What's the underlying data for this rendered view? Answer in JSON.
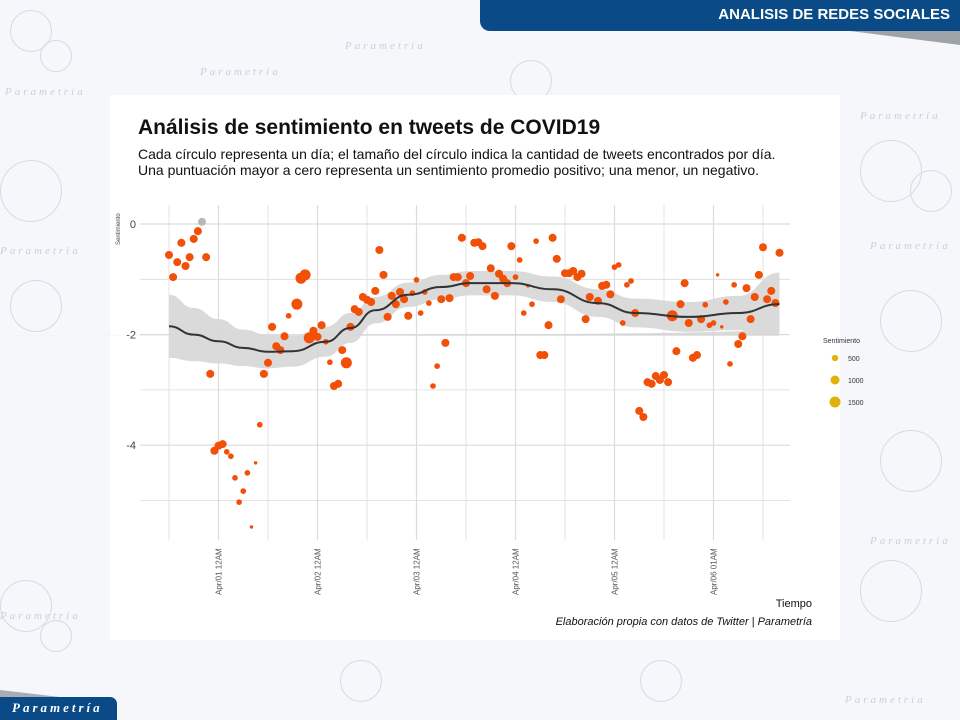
{
  "header": {
    "section_title": "ANALISIS DE REDES SOCIALES"
  },
  "footer": {
    "brand": "Parametría"
  },
  "watermark": {
    "text": "Parametría"
  },
  "chart_data": {
    "type": "scatter",
    "title": "Análisis de sentimiento en tweets de COVID19",
    "subtitle": "Cada círculo representa un día; el tamaño del círculo indica la cantidad de tweets encontrados por día. Una puntuación mayor a cero representa un sentimiento promedio positivo; una menor, un negativo.",
    "xlabel": "Tiempo",
    "ylabel": "Sentimiento",
    "caption": "Elaboración propia con datos de Twitter | Parametría",
    "ylim": [
      -5.5,
      0.3
    ],
    "y_ticks": [
      0,
      -2,
      -4
    ],
    "x_ticks": [
      {
        "x": "04-01T00",
        "label": "Apr/01 12AM"
      },
      {
        "x": "04-02T00",
        "label": "Apr/02 12AM"
      },
      {
        "x": "04-03T00",
        "label": "Apr/03 12AM"
      },
      {
        "x": "04-04T00",
        "label": "Apr/04 12AM"
      },
      {
        "x": "04-05T00",
        "label": "Apr/05 12AM"
      },
      {
        "x": "04-06T00",
        "label": "Apr/06 01AM"
      }
    ],
    "grid": true,
    "colors": {
      "negative": "#f24f07",
      "positive": "#b8b8b8",
      "smooth": "#333333",
      "band": "#d6d6d6",
      "legend": "#e0b30c"
    },
    "legend": {
      "title": "Sentimiento",
      "placement": "right",
      "sizes": [
        500,
        1000,
        1500
      ]
    },
    "points_columns": [
      "time",
      "sentiment",
      "tweets"
    ],
    "points": [
      [
        "03-31T12",
        -0.56,
        800
      ],
      [
        "03-31T13",
        -0.96,
        800
      ],
      [
        "03-31T14",
        -0.69,
        800
      ],
      [
        "03-31T15",
        -0.34,
        800
      ],
      [
        "03-31T16",
        -0.76,
        800
      ],
      [
        "03-31T17",
        -0.6,
        800
      ],
      [
        "03-31T18",
        -0.27,
        800
      ],
      [
        "03-31T19",
        -0.13,
        800
      ],
      [
        "03-31T20",
        0.04,
        800
      ],
      [
        "03-31T21",
        -0.6,
        800
      ],
      [
        "03-31T22",
        -2.71,
        800
      ],
      [
        "03-31T23",
        -4.1,
        800
      ],
      [
        "04-01T00",
        -4.01,
        800
      ],
      [
        "04-01T01",
        -3.98,
        800
      ],
      [
        "04-01T02",
        -4.12,
        400
      ],
      [
        "04-01T03",
        -4.2,
        400
      ],
      [
        "04-01T04",
        -4.59,
        400
      ],
      [
        "04-01T05",
        -5.03,
        400
      ],
      [
        "04-01T06",
        -4.83,
        400
      ],
      [
        "04-01T07",
        -4.5,
        400
      ],
      [
        "04-01T08",
        -5.48,
        150
      ],
      [
        "04-01T09",
        -4.32,
        150
      ],
      [
        "04-01T10",
        -3.63,
        400
      ],
      [
        "04-01T11",
        -2.71,
        800
      ],
      [
        "04-01T12",
        -2.51,
        800
      ],
      [
        "04-01T13",
        -1.86,
        800
      ],
      [
        "04-01T14",
        -2.21,
        800
      ],
      [
        "04-01T15",
        -2.28,
        800
      ],
      [
        "04-01T16",
        -2.03,
        800
      ],
      [
        "04-01T17",
        -1.66,
        400
      ],
      [
        "04-01T19",
        -1.45,
        1500
      ],
      [
        "04-01T20",
        -0.98,
        1500
      ],
      [
        "04-01T21",
        -0.92,
        1500
      ],
      [
        "04-01T22",
        -2.06,
        1500
      ],
      [
        "04-01T23",
        -1.93,
        800
      ],
      [
        "04-02T00",
        -2.04,
        800
      ],
      [
        "04-02T01",
        -1.83,
        800
      ],
      [
        "04-02T02",
        -2.13,
        400
      ],
      [
        "04-02T03",
        -2.5,
        400
      ],
      [
        "04-02T04",
        -2.93,
        800
      ],
      [
        "04-02T05",
        -2.89,
        800
      ],
      [
        "04-02T06",
        -2.28,
        800
      ],
      [
        "04-02T07",
        -2.51,
        1500
      ],
      [
        "04-02T08",
        -1.86,
        800
      ],
      [
        "04-02T09",
        -1.54,
        800
      ],
      [
        "04-02T10",
        -1.59,
        800
      ],
      [
        "04-02T11",
        -1.32,
        800
      ],
      [
        "04-02T12",
        -1.37,
        800
      ],
      [
        "04-02T13",
        -1.41,
        800
      ],
      [
        "04-02T14",
        -1.21,
        800
      ],
      [
        "04-02T15",
        -0.47,
        800
      ],
      [
        "04-02T16",
        -0.92,
        800
      ],
      [
        "04-02T17",
        -1.68,
        800
      ],
      [
        "04-02T18",
        -1.3,
        800
      ],
      [
        "04-02T19",
        -1.45,
        800
      ],
      [
        "04-02T20",
        -1.23,
        800
      ],
      [
        "04-02T21",
        -1.36,
        800
      ],
      [
        "04-02T22",
        -1.66,
        800
      ],
      [
        "04-02T23",
        -1.25,
        400
      ],
      [
        "04-03T00",
        -1.01,
        400
      ],
      [
        "04-03T01",
        -1.61,
        400
      ],
      [
        "04-03T02",
        -1.23,
        400
      ],
      [
        "04-03T03",
        -1.43,
        400
      ],
      [
        "04-03T04",
        -2.93,
        400
      ],
      [
        "04-03T05",
        -2.57,
        400
      ],
      [
        "04-03T06",
        -1.36,
        800
      ],
      [
        "04-03T07",
        -2.15,
        800
      ],
      [
        "04-03T08",
        -1.34,
        800
      ],
      [
        "04-03T09",
        -0.96,
        800
      ],
      [
        "04-03T10",
        -0.96,
        800
      ],
      [
        "04-03T11",
        -0.25,
        800
      ],
      [
        "04-03T12",
        -1.07,
        800
      ],
      [
        "04-03T13",
        -0.94,
        800
      ],
      [
        "04-03T14",
        -0.34,
        800
      ],
      [
        "04-03T15",
        -0.33,
        800
      ],
      [
        "04-03T16",
        -0.4,
        800
      ],
      [
        "04-03T17",
        -1.18,
        800
      ],
      [
        "04-03T18",
        -0.8,
        800
      ],
      [
        "04-03T19",
        -1.3,
        800
      ],
      [
        "04-03T20",
        -0.9,
        800
      ],
      [
        "04-03T21",
        -0.99,
        800
      ],
      [
        "04-03T22",
        -1.07,
        800
      ],
      [
        "04-03T23",
        -0.4,
        800
      ],
      [
        "04-04T00",
        -0.96,
        400
      ],
      [
        "04-04T01",
        -0.65,
        400
      ],
      [
        "04-04T02",
        -1.61,
        400
      ],
      [
        "04-04T03",
        -1.12,
        150
      ],
      [
        "04-04T04",
        -1.45,
        400
      ],
      [
        "04-04T05",
        -0.31,
        400
      ],
      [
        "04-04T06",
        -2.37,
        800
      ],
      [
        "04-04T07",
        -2.37,
        800
      ],
      [
        "04-04T08",
        -1.83,
        800
      ],
      [
        "04-04T09",
        -0.25,
        800
      ],
      [
        "04-04T10",
        -0.63,
        800
      ],
      [
        "04-04T11",
        -1.36,
        800
      ],
      [
        "04-04T12",
        -0.89,
        800
      ],
      [
        "04-04T13",
        -0.89,
        800
      ],
      [
        "04-04T14",
        -0.85,
        800
      ],
      [
        "04-04T15",
        -0.96,
        800
      ],
      [
        "04-04T16",
        -0.9,
        800
      ],
      [
        "04-04T17",
        -1.72,
        800
      ],
      [
        "04-04T18",
        -1.32,
        800
      ],
      [
        "04-04T20",
        -1.39,
        800
      ],
      [
        "04-04T21",
        -1.12,
        800
      ],
      [
        "04-04T22",
        -1.1,
        800
      ],
      [
        "04-04T23",
        -1.27,
        800
      ],
      [
        "04-05T00",
        -0.78,
        400
      ],
      [
        "04-05T01",
        -0.74,
        400
      ],
      [
        "04-05T02",
        -1.79,
        400
      ],
      [
        "04-05T03",
        -1.1,
        400
      ],
      [
        "04-05T04",
        -1.03,
        400
      ],
      [
        "04-05T05",
        -1.61,
        800
      ],
      [
        "04-05T06",
        -3.38,
        800
      ],
      [
        "04-05T07",
        -3.49,
        800
      ],
      [
        "04-05T08",
        -2.86,
        800
      ],
      [
        "04-05T09",
        -2.89,
        800
      ],
      [
        "04-05T10",
        -2.75,
        800
      ],
      [
        "04-05T11",
        -2.82,
        800
      ],
      [
        "04-05T12",
        -2.73,
        800
      ],
      [
        "04-05T13",
        -2.86,
        800
      ],
      [
        "04-05T14",
        -1.66,
        1500
      ],
      [
        "04-05T15",
        -2.3,
        800
      ],
      [
        "04-05T16",
        -1.45,
        800
      ],
      [
        "04-05T17",
        -1.07,
        800
      ],
      [
        "04-05T18",
        -1.79,
        800
      ],
      [
        "04-05T19",
        -2.42,
        800
      ],
      [
        "04-05T20",
        -2.37,
        800
      ],
      [
        "04-05T21",
        -1.72,
        800
      ],
      [
        "04-05T22",
        -1.46,
        400
      ],
      [
        "04-05T23",
        -1.83,
        400
      ],
      [
        "04-06T00",
        -1.79,
        400
      ],
      [
        "04-06T01",
        -0.92,
        150
      ],
      [
        "04-06T02",
        -1.86,
        150
      ],
      [
        "04-06T03",
        -1.41,
        400
      ],
      [
        "04-06T04",
        -2.53,
        400
      ],
      [
        "04-06T05",
        -1.1,
        400
      ],
      [
        "04-06T06",
        -2.17,
        800
      ],
      [
        "04-06T07",
        -2.03,
        800
      ],
      [
        "04-06T08",
        -1.16,
        800
      ],
      [
        "04-06T09",
        -1.72,
        800
      ],
      [
        "04-06T10",
        -1.32,
        800
      ],
      [
        "04-06T11",
        -0.92,
        800
      ],
      [
        "04-06T12",
        -0.42,
        800
      ],
      [
        "04-06T13",
        -1.36,
        800
      ],
      [
        "04-06T14",
        -1.21,
        800
      ],
      [
        "04-06T15",
        -1.43,
        800
      ],
      [
        "04-06T16",
        -0.52,
        800
      ]
    ],
    "smooth_columns": [
      "time",
      "fit",
      "lower",
      "upper"
    ],
    "smooth": [
      [
        "03-31T12",
        -1.85,
        -2.42,
        -1.28
      ],
      [
        "03-31T18",
        -2.0,
        -2.48,
        -1.52
      ],
      [
        "04-01T00",
        -2.12,
        -2.52,
        -1.72
      ],
      [
        "04-01T06",
        -2.24,
        -2.57,
        -1.91
      ],
      [
        "04-01T12",
        -2.31,
        -2.61,
        -2.01
      ],
      [
        "04-01T18",
        -2.3,
        -2.58,
        -2.02
      ],
      [
        "04-02T02",
        -2.13,
        -2.4,
        -1.86
      ],
      [
        "04-02T08",
        -1.88,
        -2.15,
        -1.61
      ],
      [
        "04-02T14",
        -1.56,
        -1.8,
        -1.32
      ],
      [
        "04-02T22",
        -1.28,
        -1.5,
        -1.06
      ],
      [
        "04-03T06",
        -1.14,
        -1.36,
        -0.92
      ],
      [
        "04-03T13",
        -1.07,
        -1.29,
        -0.85
      ],
      [
        "04-03T23",
        -1.07,
        -1.29,
        -0.85
      ],
      [
        "04-04T09",
        -1.18,
        -1.41,
        -0.95
      ],
      [
        "04-04T20",
        -1.43,
        -1.68,
        -1.18
      ],
      [
        "04-05T05",
        -1.61,
        -1.87,
        -1.35
      ],
      [
        "04-05T18",
        -1.68,
        -1.95,
        -1.41
      ],
      [
        "04-06T06",
        -1.61,
        -1.92,
        -1.3
      ],
      [
        "04-06T16",
        -1.45,
        -2.02,
        -0.88
      ]
    ]
  }
}
